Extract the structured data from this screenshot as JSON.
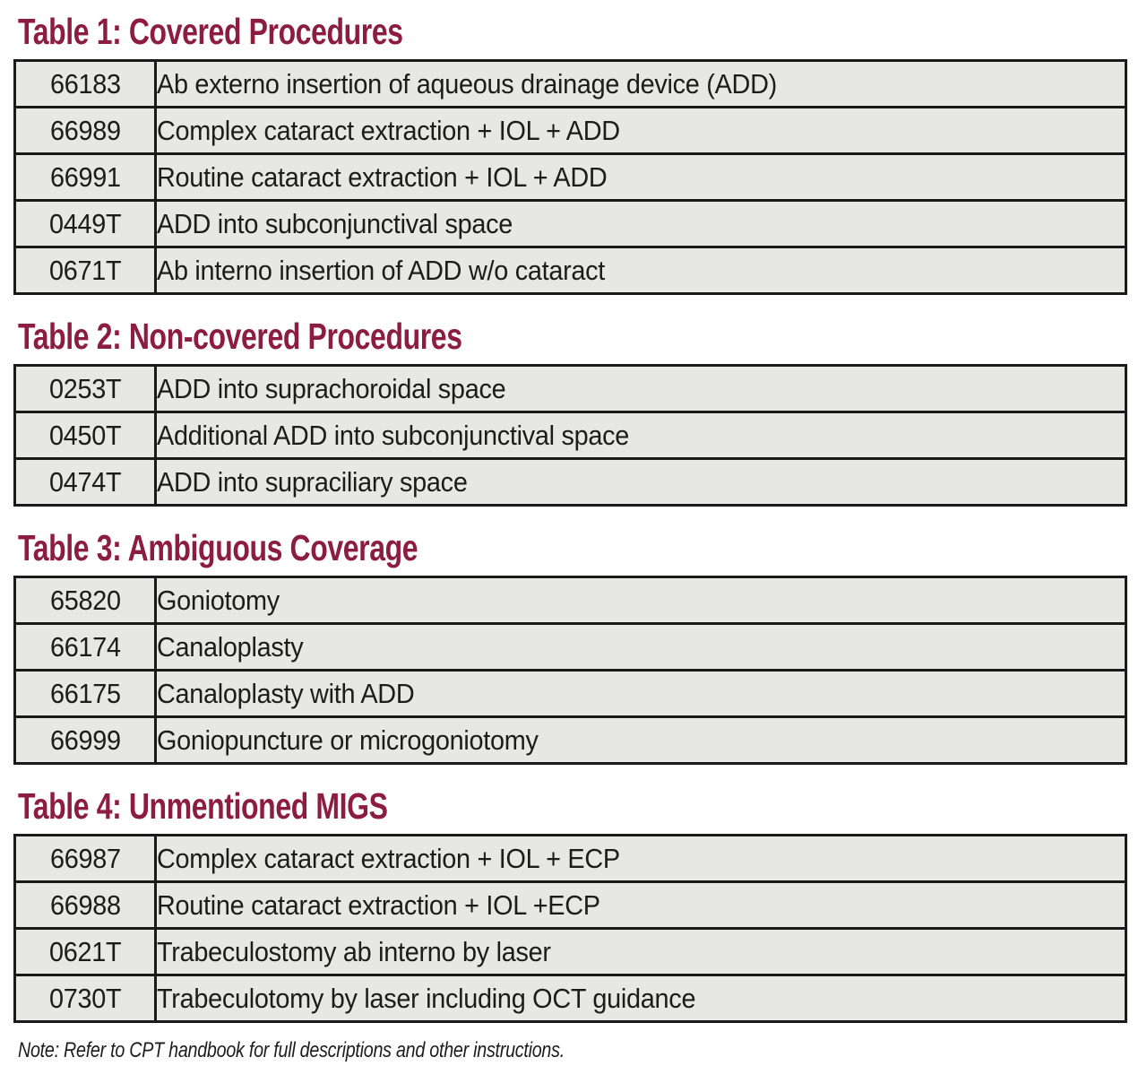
{
  "colors": {
    "title_maroon": "#8c1d40",
    "row_background": "#e7e7e6",
    "border_black": "#1a1a1a",
    "text_black": "#1c1c1c"
  },
  "tables": [
    {
      "title": "Table 1: Covered Procedures",
      "rows": [
        {
          "code": "66183",
          "description": "Ab externo insertion of aqueous drainage device (ADD)"
        },
        {
          "code": "66989",
          "description": "Complex cataract extraction + IOL + ADD"
        },
        {
          "code": "66991",
          "description": "Routine cataract extraction + IOL + ADD"
        },
        {
          "code": "0449T",
          "description": "ADD into subconjunctival space"
        },
        {
          "code": "0671T",
          "description": "Ab interno insertion of ADD w/o cataract"
        }
      ]
    },
    {
      "title": "Table 2: Non-covered Procedures",
      "rows": [
        {
          "code": "0253T",
          "description": "ADD into suprachoroidal space"
        },
        {
          "code": "0450T",
          "description": "Additional ADD into subconjunctival space"
        },
        {
          "code": "0474T",
          "description": "ADD into supraciliary space"
        }
      ]
    },
    {
      "title": "Table 3: Ambiguous Coverage",
      "rows": [
        {
          "code": "65820",
          "description": "Goniotomy"
        },
        {
          "code": "66174",
          "description": "Canaloplasty"
        },
        {
          "code": "66175",
          "description": "Canaloplasty with ADD"
        },
        {
          "code": "66999",
          "description": "Goniopuncture or microgoniotomy"
        }
      ]
    },
    {
      "title": "Table 4: Unmentioned MIGS",
      "rows": [
        {
          "code": "66987",
          "description": "Complex cataract extraction + IOL + ECP"
        },
        {
          "code": "66988",
          "description": "Routine cataract extraction + IOL +ECP"
        },
        {
          "code": "0621T",
          "description": "Trabeculostomy ab interno by laser"
        },
        {
          "code": "0730T",
          "description": "Trabeculotomy by laser including OCT guidance"
        }
      ]
    }
  ],
  "note": "Note: Refer to CPT handbook for full descriptions and other instructions."
}
